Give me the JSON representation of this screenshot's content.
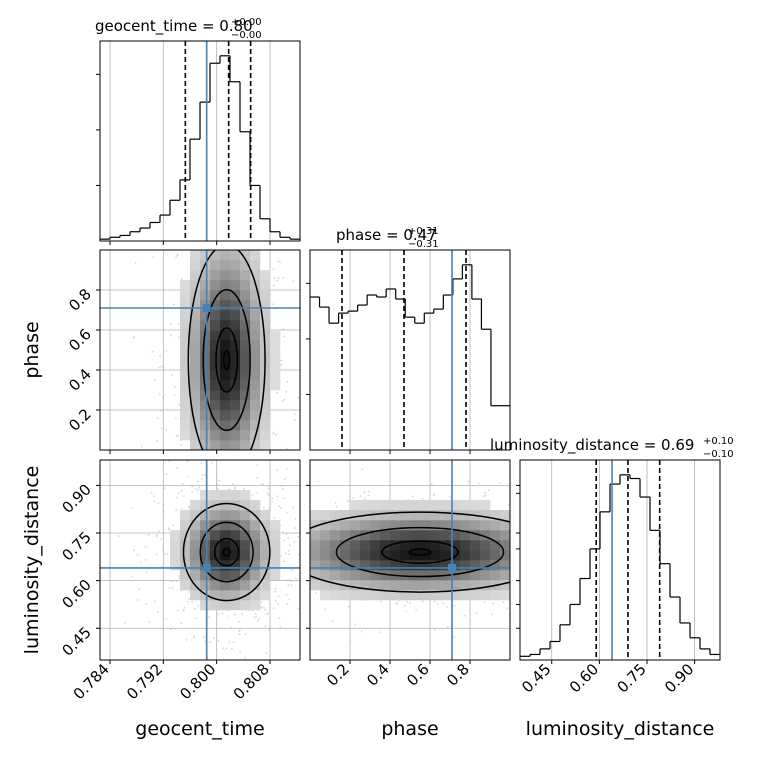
{
  "chart_data": {
    "type": "corner",
    "parameters": [
      "geocent_time",
      "phase",
      "luminosity_distance"
    ],
    "truth_color": "#4682b4",
    "titles": [
      {
        "label": "geocent_time = 0.80",
        "plus": "+0.00",
        "minus": "−0.00"
      },
      {
        "label": "phase = 0.47",
        "plus": "+0.31",
        "minus": "−0.31"
      },
      {
        "label": "luminosity_distance = 0.69",
        "plus": "+0.10",
        "minus": "−0.10"
      }
    ],
    "xlabels": [
      "geocent_time",
      "phase",
      "luminosity_distance"
    ],
    "ylabels": [
      "phase",
      "luminosity_distance"
    ],
    "ranges": [
      [
        0.7825,
        0.8125
      ],
      [
        0.0,
        1.0
      ],
      [
        0.35,
        0.98
      ]
    ],
    "truths": [
      0.7985,
      0.71,
      0.64
    ],
    "quantiles": [
      [
        0.7953,
        0.8018,
        0.8051
      ],
      [
        0.16,
        0.47,
        0.78
      ],
      [
        0.59,
        0.69,
        0.79
      ]
    ],
    "ticks": {
      "geocent_time": [
        "0.784",
        "0.792",
        "0.800",
        "0.808"
      ],
      "phase": [
        "0.2",
        "0.4",
        "0.6",
        "0.8"
      ],
      "luminosity_distance": [
        "0.45",
        "0.60",
        "0.75",
        "0.90"
      ]
    },
    "hist_geocent_time": [
      1,
      2,
      3,
      5,
      7,
      10,
      14,
      22,
      33,
      55,
      75,
      96,
      100,
      86,
      59,
      30,
      12,
      5,
      2,
      1
    ],
    "hist_phase": [
      76,
      71,
      63,
      68,
      69,
      72,
      77,
      76,
      80,
      75,
      66,
      63,
      68,
      70,
      77,
      85,
      92,
      75,
      60,
      22,
      22
    ],
    "hist_luminosity_distance": [
      2,
      3,
      6,
      10,
      19,
      30,
      44,
      60,
      80,
      95,
      100,
      98,
      88,
      70,
      52,
      34,
      20,
      12,
      6,
      3
    ],
    "grid": true
  }
}
